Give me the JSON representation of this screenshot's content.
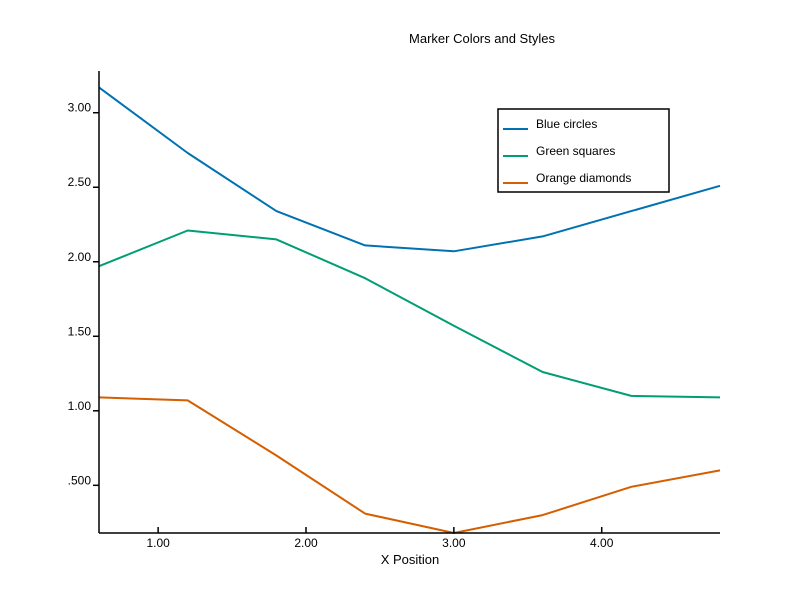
{
  "chart_data": {
    "type": "line",
    "title": "Marker Colors and Styles",
    "xlabel": "X Position",
    "ylabel": "",
    "xlim": [
      0.6,
      4.8
    ],
    "ylim": [
      0.18,
      3.28
    ],
    "xticks": [
      1,
      2,
      3,
      4
    ],
    "xtick_labels": [
      "1.00",
      "2.00",
      "3.00",
      "4.00"
    ],
    "yticks": [
      0.5,
      1.0,
      1.5,
      2.0,
      2.5,
      3.0
    ],
    "ytick_labels": [
      ".500",
      "1.00",
      "1.50",
      "2.00",
      "2.50",
      "3.00"
    ],
    "grid": false,
    "legend_position": "top-right",
    "x": [
      0.6,
      1.2,
      1.8,
      2.4,
      3.0,
      3.6,
      4.2,
      4.8
    ],
    "series": [
      {
        "name": "Blue circles",
        "color": "#0072b2",
        "values": [
          3.17,
          2.73,
          2.34,
          2.11,
          2.07,
          2.17,
          2.34,
          2.51
        ]
      },
      {
        "name": "Green squares",
        "color": "#009e73",
        "values": [
          1.97,
          2.21,
          2.15,
          1.89,
          1.57,
          1.26,
          1.1,
          1.09
        ]
      },
      {
        "name": "Orange diamonds",
        "color": "#d55e00",
        "values": [
          1.09,
          1.07,
          0.7,
          0.31,
          0.18,
          0.3,
          0.49,
          0.6
        ]
      }
    ]
  }
}
